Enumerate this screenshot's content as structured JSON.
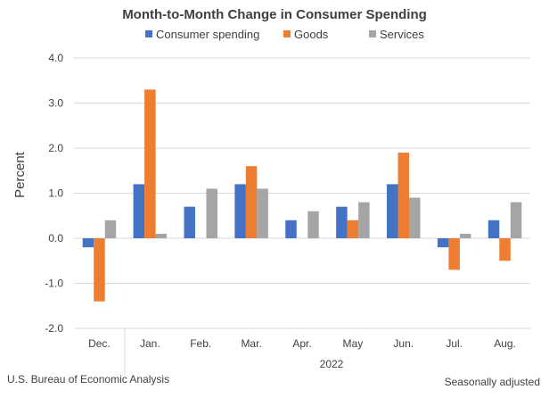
{
  "chart_data": {
    "type": "bar",
    "title": "Month-to-Month Change in Consumer Spending",
    "ylabel": "Percent",
    "xlabel": "2022",
    "ylim": [
      -2.0,
      4.0
    ],
    "yticks": [
      "-2.0",
      "-1.0",
      "0.0",
      "1.0",
      "2.0",
      "3.0",
      "4.0"
    ],
    "categories": [
      "Dec.",
      "Jan.",
      "Feb.",
      "Mar.",
      "Apr.",
      "May",
      "Jun.",
      "Jul.",
      "Aug."
    ],
    "series": [
      {
        "name": "Consumer spending",
        "color": "#4472c4",
        "values": [
          -0.2,
          1.2,
          0.7,
          1.2,
          0.4,
          0.7,
          1.2,
          -0.2,
          0.4
        ]
      },
      {
        "name": "Goods",
        "color": "#ed7d31",
        "values": [
          -1.4,
          3.3,
          0.0,
          1.6,
          0.0,
          0.4,
          1.9,
          -0.7,
          -0.5
        ]
      },
      {
        "name": "Services",
        "color": "#a5a5a5",
        "values": [
          0.4,
          0.1,
          1.1,
          1.1,
          0.6,
          0.8,
          0.9,
          0.1,
          0.8
        ]
      }
    ],
    "grid": true,
    "legend": "top"
  },
  "footer": {
    "source": "U.S. Bureau of Economic Analysis",
    "note": "Seasonally adjusted"
  }
}
